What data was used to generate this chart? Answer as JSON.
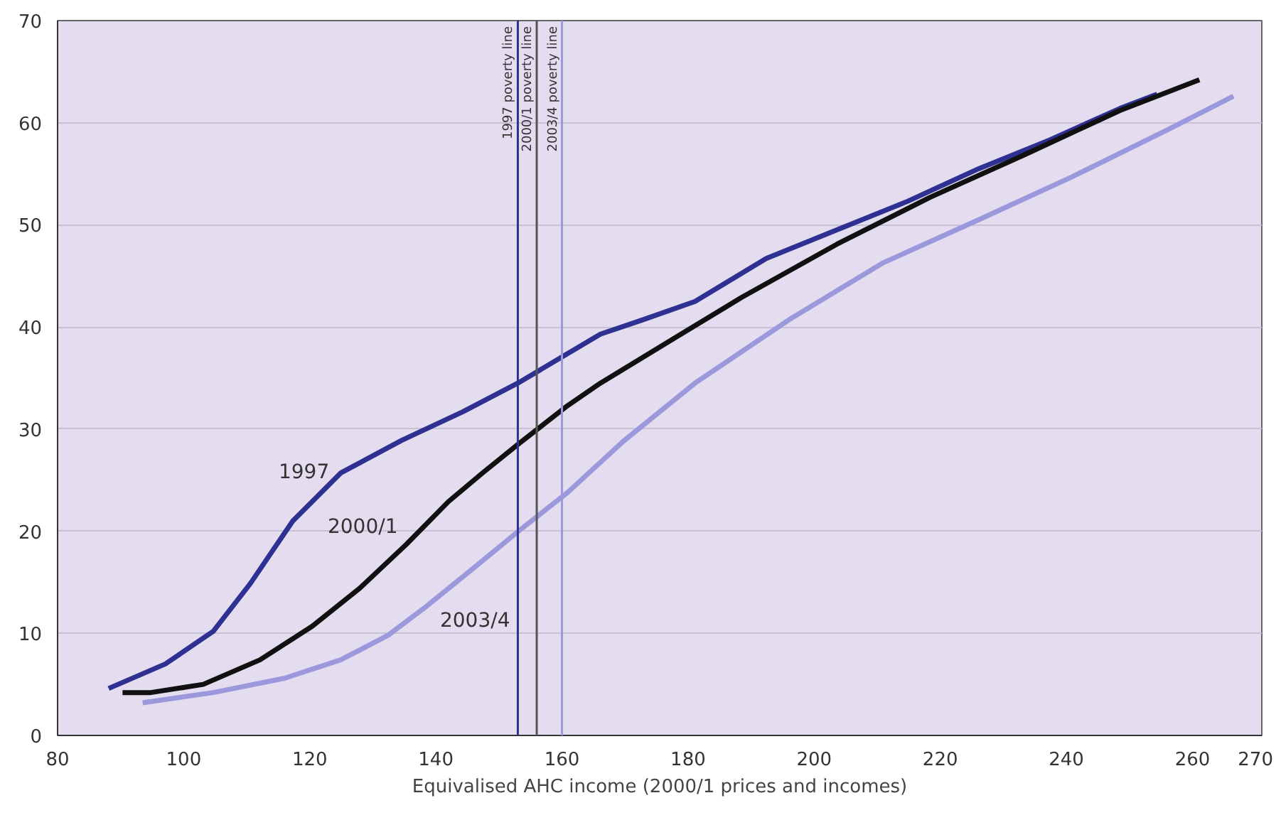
{
  "chart_data": {
    "type": "line",
    "xlabel": "Equivalised AHC income (2000/1 prices and incomes)",
    "xlim": [
      80,
      271
    ],
    "xticks": [
      80,
      100,
      120,
      140,
      160,
      180,
      200,
      220,
      240,
      260,
      270
    ],
    "ylim": [
      0,
      70
    ],
    "yticks": [
      0,
      10,
      20,
      30,
      40,
      50,
      60,
      70
    ],
    "grid": "y",
    "marker": "none",
    "line_style": "solid",
    "series": [
      {
        "name": "1997",
        "color": "#2e3192",
        "x": [
          88.1,
          97.1,
          104.7,
          110.6,
          117.3,
          124.9,
          134.6,
          144.3,
          153,
          166.1,
          172.8,
          181.1,
          192.4,
          203.6,
          214.8,
          226.1,
          237.3,
          248.5,
          254.4
        ],
        "values": [
          4.6,
          7.0,
          10.2,
          14.9,
          21.0,
          25.7,
          28.9,
          31.7,
          34.5,
          39.3,
          40.7,
          42.5,
          46.7,
          49.5,
          52.3,
          55.5,
          58.3,
          61.4,
          62.8
        ]
      },
      {
        "name": "2000/1",
        "color": "#111111",
        "x": [
          90.3,
          94.8,
          103.1,
          112.1,
          120.4,
          127.9,
          135.3,
          142.0,
          147.4,
          153,
          160.9,
          166.1,
          177.3,
          188.5,
          203.6,
          218.4,
          233.5,
          248.5,
          261.1
        ],
        "values": [
          4.2,
          4.2,
          5.0,
          7.4,
          10.7,
          14.4,
          18.7,
          22.9,
          25.7,
          28.5,
          32.3,
          34.5,
          38.7,
          42.9,
          48.1,
          52.7,
          56.9,
          61.2,
          64.2
        ]
      },
      {
        "name": "2003/4",
        "color": "#9c98dc",
        "x": [
          93.5,
          104.7,
          116,
          124.9,
          132.4,
          138.4,
          145.8,
          153.3,
          160.9,
          169.9,
          181.1,
          196,
          211,
          226.1,
          240.9,
          256,
          266.5
        ],
        "values": [
          3.2,
          4.2,
          5.6,
          7.4,
          9.8,
          12.6,
          16.3,
          20.1,
          23.8,
          28.9,
          34.5,
          40.7,
          46.3,
          50.5,
          54.7,
          59.3,
          62.6
        ]
      }
    ],
    "ref_lines": [
      {
        "axis": "x",
        "value": 153,
        "label": "1997 poverty line",
        "color": "#2e3192"
      },
      {
        "axis": "x",
        "value": 156,
        "label": "2000/1 poverty line",
        "color": "#555555"
      },
      {
        "axis": "x",
        "value": 160,
        "label": "2003/4 poverty line",
        "color": "#9c98dc"
      }
    ]
  }
}
